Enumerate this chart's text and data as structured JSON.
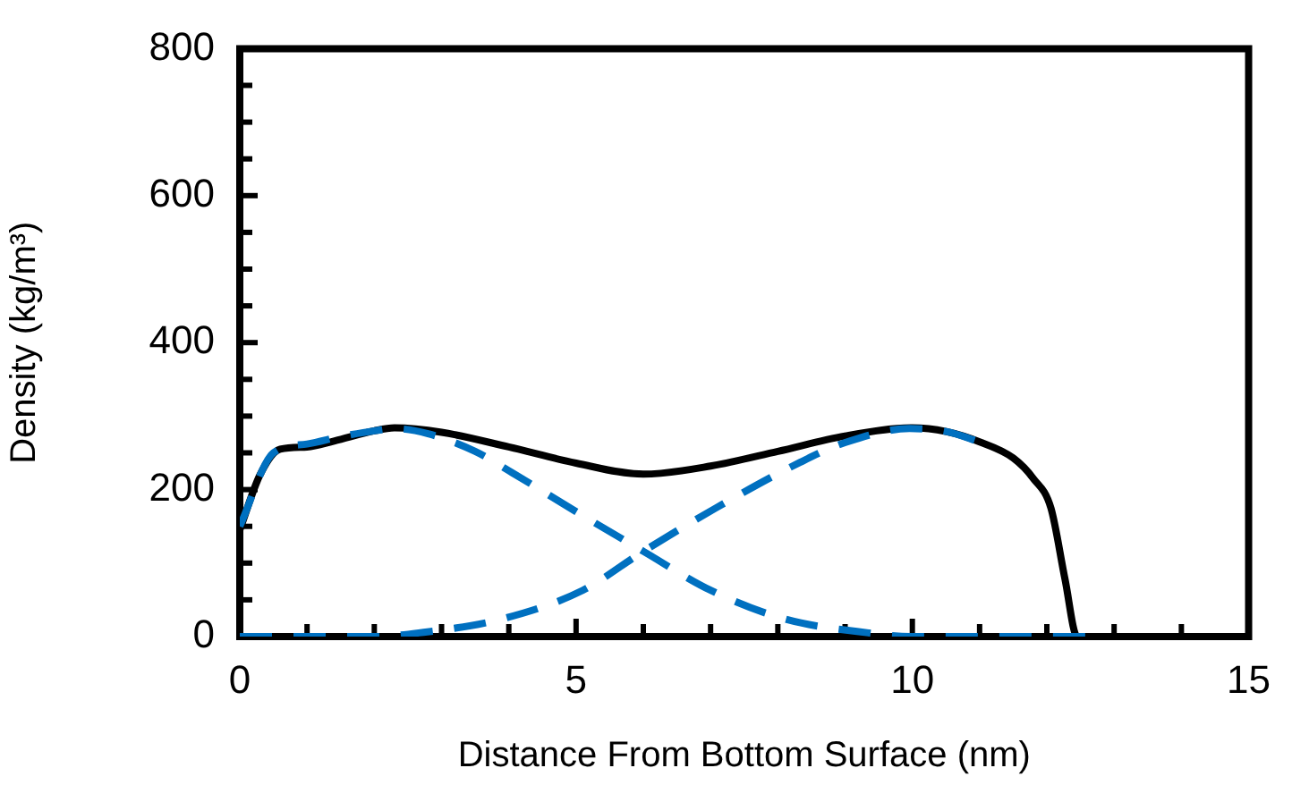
{
  "chart_data": {
    "type": "line",
    "xlabel": "Distance From Bottom Surface (nm)",
    "ylabel": "Density (kg/m³)",
    "xlim": [
      0,
      15
    ],
    "ylim": [
      0,
      800
    ],
    "xticks": [
      0,
      {
        "value": 1,
        "label": null
      },
      {
        "value": 2,
        "label": null
      },
      {
        "value": 3,
        "label": null
      },
      {
        "value": 4,
        "label": null
      },
      5,
      {
        "value": 6,
        "label": null
      },
      {
        "value": 7,
        "label": null
      },
      {
        "value": 8,
        "label": null
      },
      {
        "value": 9,
        "label": null
      },
      10,
      {
        "value": 11,
        "label": null
      },
      {
        "value": 12,
        "label": null
      },
      {
        "value": 13,
        "label": null
      },
      {
        "value": 14,
        "label": null
      },
      15
    ],
    "yticks": [
      0,
      {
        "value": 50,
        "label": null
      },
      {
        "value": 100,
        "label": null
      },
      {
        "value": 150,
        "label": null
      },
      200,
      {
        "value": 250,
        "label": null
      },
      {
        "value": 300,
        "label": null
      },
      {
        "value": 350,
        "label": null
      },
      400,
      {
        "value": 450,
        "label": null
      },
      {
        "value": 500,
        "label": null
      },
      {
        "value": 550,
        "label": null
      },
      600,
      {
        "value": 650,
        "label": null
      },
      {
        "value": 700,
        "label": null
      },
      {
        "value": 750,
        "label": null
      },
      800
    ],
    "grid": false,
    "legend": false,
    "marker": "none",
    "series": [
      {
        "color": "#0070c0",
        "line_style": "dashed",
        "x": [
          0,
          0.5,
          1,
          1.5,
          2,
          2.3,
          2.8,
          3.5,
          4.05,
          5,
          6,
          7,
          8.1,
          9.35,
          10,
          11,
          12,
          12.7
        ],
        "values": [
          150,
          250,
          262,
          272,
          280,
          283,
          276,
          252,
          223,
          170,
          116,
          63,
          24,
          5,
          0,
          0,
          0,
          0
        ]
      },
      {
        "color": "#0070c0",
        "line_style": "dashed",
        "x": [
          0,
          1,
          2,
          2.66,
          3.9,
          5.1,
          6,
          7.08,
          8.33,
          9,
          9.96,
          10.5,
          11
        ],
        "values": [
          0,
          0,
          0,
          5,
          24,
          63,
          116,
          175,
          237,
          264,
          283,
          279,
          265
        ]
      },
      {
        "color": "#000000",
        "line_style": "solid",
        "x": [
          0,
          0.3,
          0.6,
          1,
          1.4,
          2,
          2.3,
          3,
          4,
          5,
          6,
          7,
          8,
          9,
          10,
          10.5,
          11,
          11.5,
          11.8,
          12.06,
          12.27,
          12.45,
          13
        ],
        "values": [
          145,
          220,
          255,
          258,
          266,
          280,
          284,
          278,
          258,
          236,
          221,
          232,
          252,
          273,
          284,
          279,
          265,
          243,
          215,
          175,
          78,
          0,
          0
        ]
      }
    ]
  }
}
